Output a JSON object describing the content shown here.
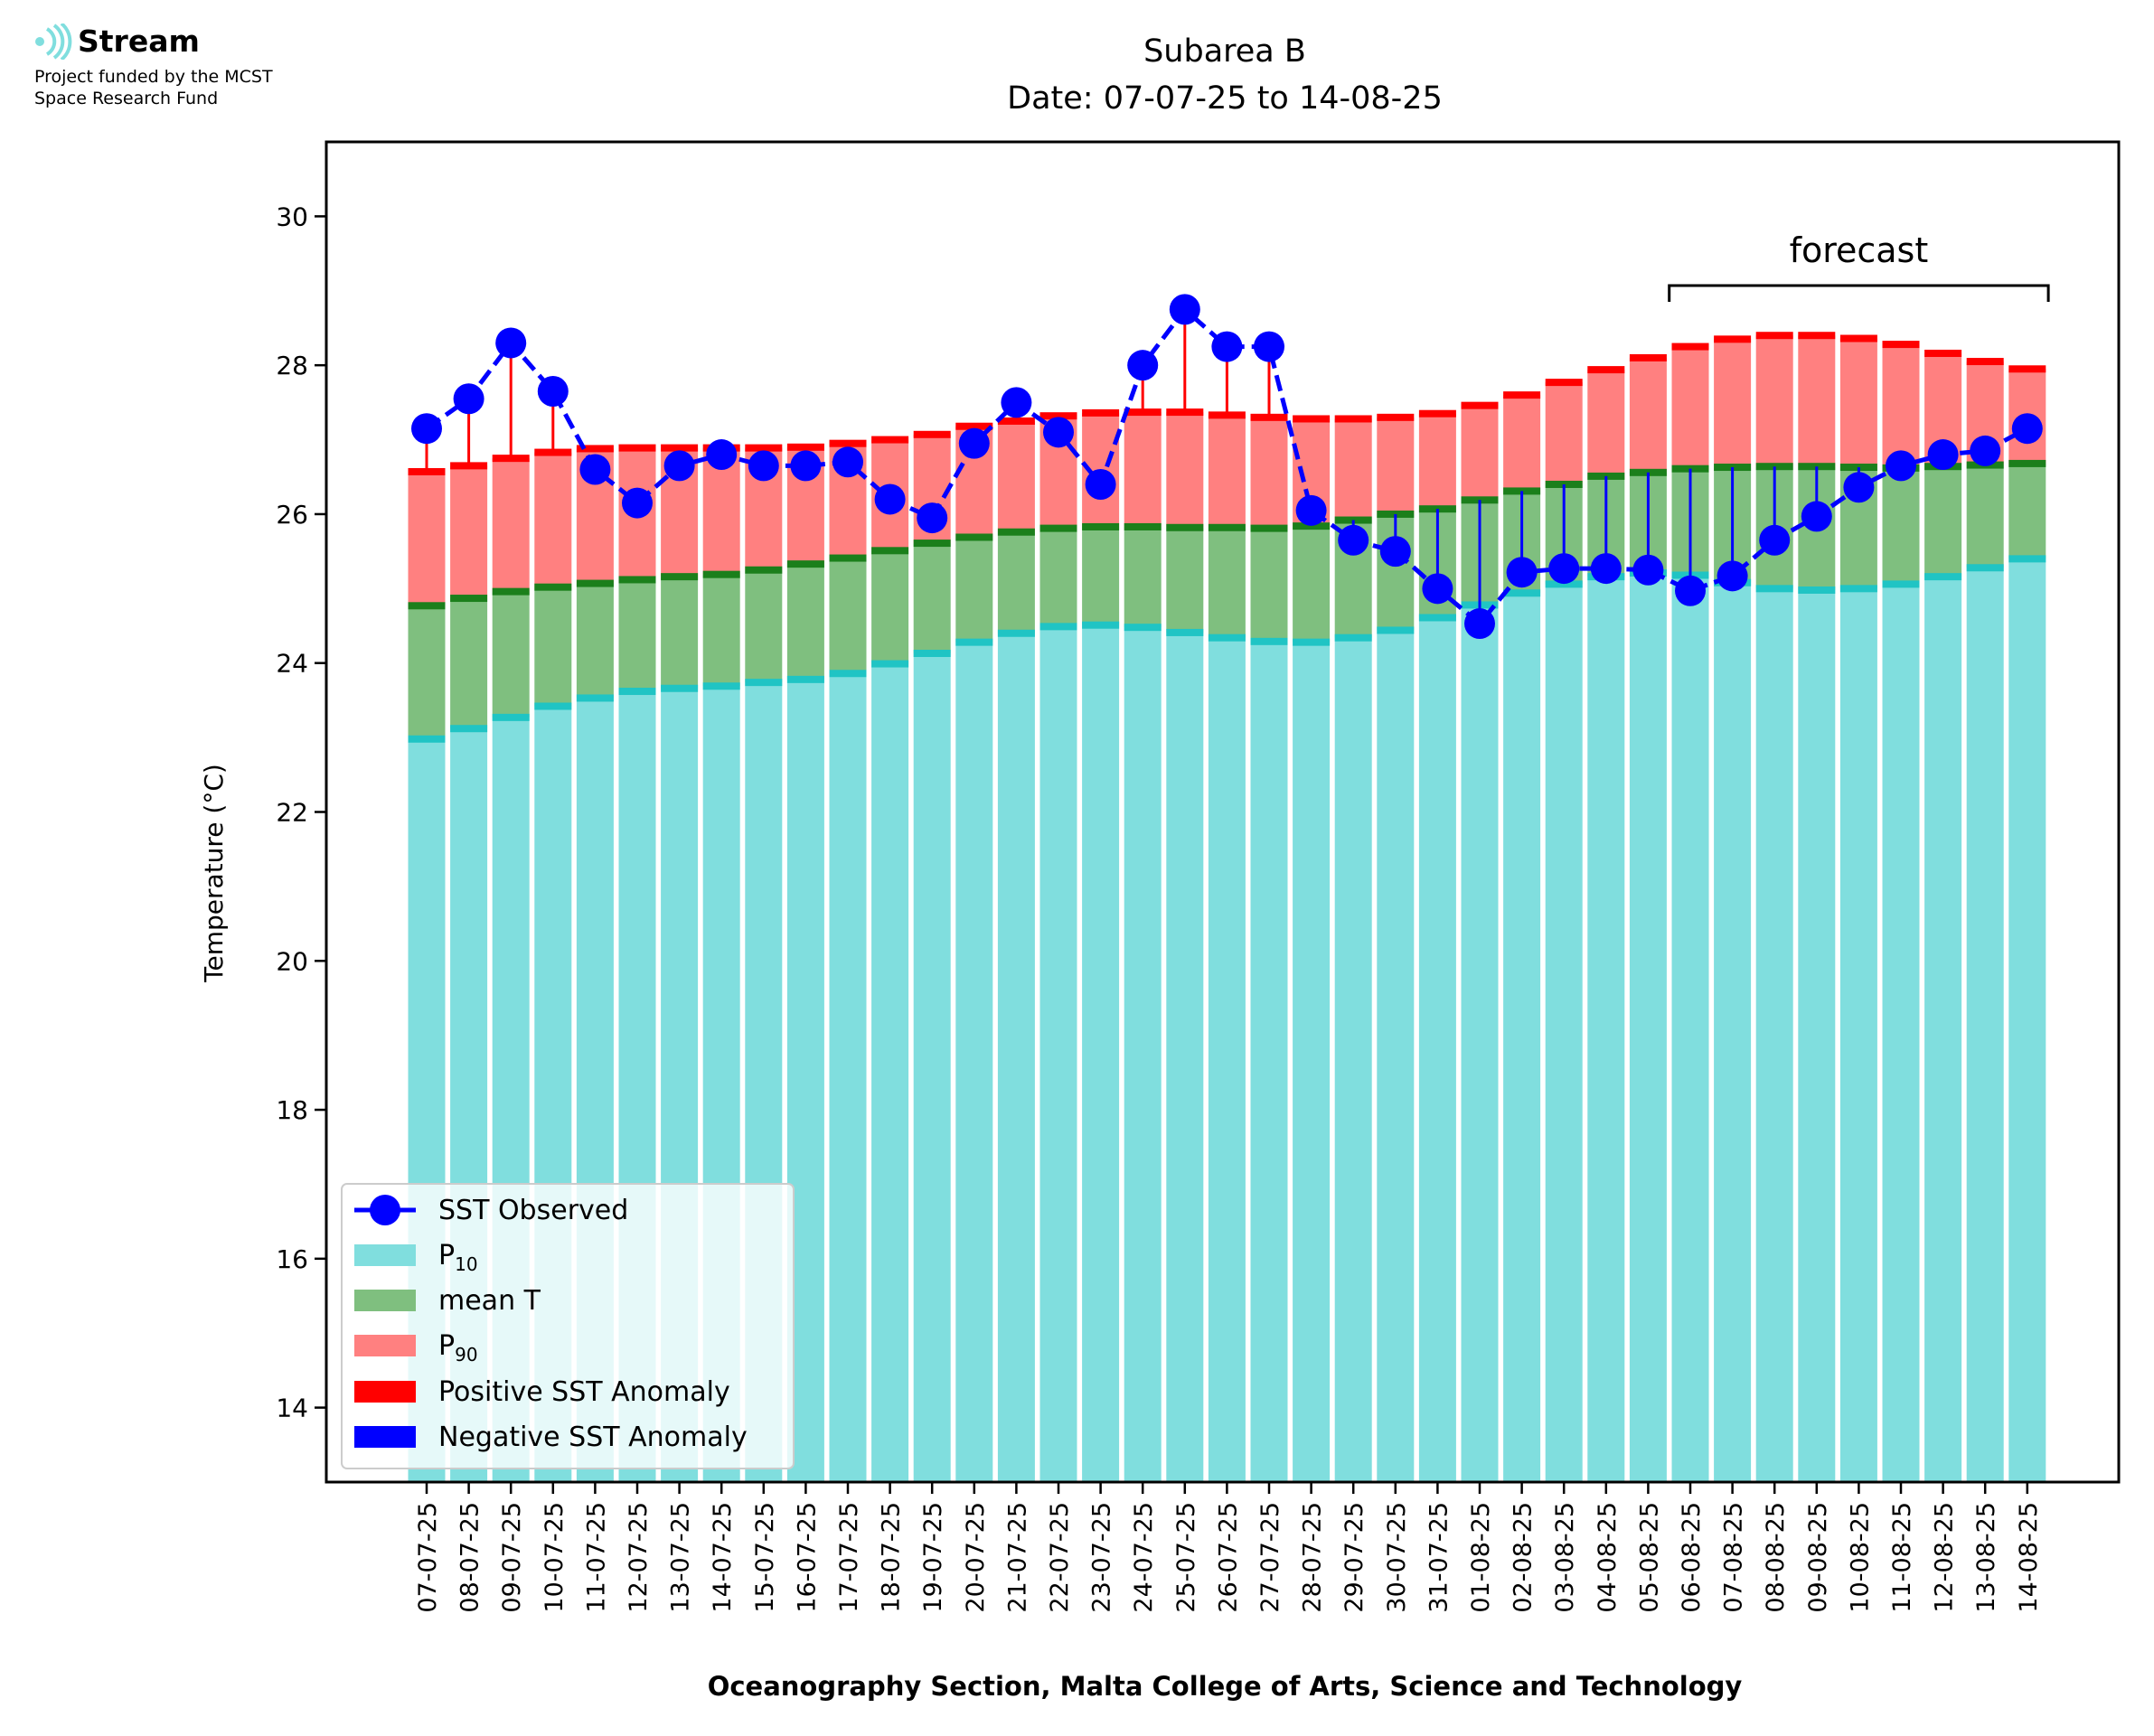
{
  "logo": {
    "name": "Stream",
    "tagline_1": "Project funded by the MCST",
    "tagline_2": "Space Research Fund",
    "icon": "stream-wave-icon"
  },
  "colors": {
    "p10": "#80dede",
    "p10_edge": "#20c4c4",
    "mean": "#7fbf7f",
    "mean_edge": "#1b7f1b",
    "p90": "#ff8080",
    "p90_edge": "#ff0000",
    "observed": "#0000ff",
    "positive_anomaly": "#ff0000",
    "negative_anomaly": "#0000ff"
  },
  "chart_data": {
    "type": "bar",
    "title": "Subarea B",
    "subtitle": "Date: 07-07-25 to 14-08-25",
    "xlabel": "Oceanography Section, Malta College of Arts, Science and Technology",
    "ylabel": "Temperature (°C)",
    "ylim": [
      13,
      31
    ],
    "yticks": [
      14,
      16,
      18,
      20,
      22,
      24,
      26,
      28,
      30
    ],
    "grid": false,
    "legend_position": "bottom-left",
    "annotation": {
      "text": "forecast",
      "from": "06-08-25",
      "to": "14-08-25"
    },
    "categories": [
      "07-07-25",
      "08-07-25",
      "09-07-25",
      "10-07-25",
      "11-07-25",
      "12-07-25",
      "13-07-25",
      "14-07-25",
      "15-07-25",
      "16-07-25",
      "17-07-25",
      "18-07-25",
      "19-07-25",
      "20-07-25",
      "21-07-25",
      "22-07-25",
      "23-07-25",
      "24-07-25",
      "25-07-25",
      "26-07-25",
      "27-07-25",
      "28-07-25",
      "29-07-25",
      "30-07-25",
      "31-07-25",
      "01-08-25",
      "02-08-25",
      "03-08-25",
      "04-08-25",
      "05-08-25",
      "06-08-25",
      "07-08-25",
      "08-08-25",
      "09-08-25",
      "10-08-25",
      "11-08-25",
      "12-08-25",
      "13-08-25",
      "14-08-25"
    ],
    "series": [
      {
        "name": "P10",
        "label_base": "P",
        "label_sub": "10",
        "kind": "bar",
        "values": [
          22.98,
          23.12,
          23.27,
          23.42,
          23.53,
          23.62,
          23.66,
          23.69,
          23.74,
          23.78,
          23.86,
          23.99,
          24.13,
          24.28,
          24.4,
          24.49,
          24.51,
          24.48,
          24.41,
          24.34,
          24.29,
          24.28,
          24.34,
          24.44,
          24.61,
          24.78,
          24.94,
          25.06,
          25.16,
          25.21,
          25.18,
          25.08,
          25.0,
          24.98,
          25.0,
          25.06,
          25.16,
          25.28,
          25.4
        ]
      },
      {
        "name": "mean T",
        "kind": "bar",
        "values": [
          24.77,
          24.87,
          24.96,
          25.02,
          25.07,
          25.12,
          25.16,
          25.19,
          25.25,
          25.33,
          25.41,
          25.51,
          25.61,
          25.69,
          25.76,
          25.81,
          25.83,
          25.83,
          25.82,
          25.82,
          25.81,
          25.84,
          25.92,
          26.0,
          26.07,
          26.19,
          26.31,
          26.4,
          26.51,
          26.56,
          26.61,
          26.63,
          26.64,
          26.64,
          26.63,
          26.62,
          26.64,
          26.66,
          26.68
        ]
      },
      {
        "name": "P90",
        "label_base": "P",
        "label_sub": "90",
        "kind": "bar",
        "values": [
          26.57,
          26.65,
          26.75,
          26.83,
          26.88,
          26.89,
          26.89,
          26.89,
          26.89,
          26.9,
          26.95,
          27.0,
          27.07,
          27.18,
          27.25,
          27.32,
          27.36,
          27.37,
          27.37,
          27.33,
          27.3,
          27.28,
          27.28,
          27.3,
          27.35,
          27.46,
          27.6,
          27.77,
          27.94,
          28.1,
          28.25,
          28.35,
          28.4,
          28.4,
          28.36,
          28.28,
          28.16,
          28.05,
          27.95
        ]
      },
      {
        "name": "SST Observed",
        "kind": "line",
        "values": [
          27.15,
          27.55,
          28.3,
          27.65,
          26.6,
          26.15,
          26.65,
          26.8,
          26.65,
          26.65,
          26.7,
          26.2,
          25.95,
          26.95,
          27.5,
          27.1,
          26.4,
          28.0,
          28.75,
          28.25,
          28.25,
          26.05,
          25.65,
          25.5,
          25.0,
          24.53,
          25.22,
          25.27,
          25.27,
          25.25,
          24.97,
          25.17,
          25.65,
          25.97,
          26.36,
          26.65,
          26.8,
          26.85,
          27.15
        ]
      }
    ],
    "legend": [
      {
        "label": "SST Observed"
      },
      {
        "label_base": "P",
        "label_sub": "10"
      },
      {
        "label": "mean T"
      },
      {
        "label_base": "P",
        "label_sub": "90"
      },
      {
        "label": "Positive SST Anomaly"
      },
      {
        "label": "Negative SST Anomaly"
      }
    ]
  }
}
